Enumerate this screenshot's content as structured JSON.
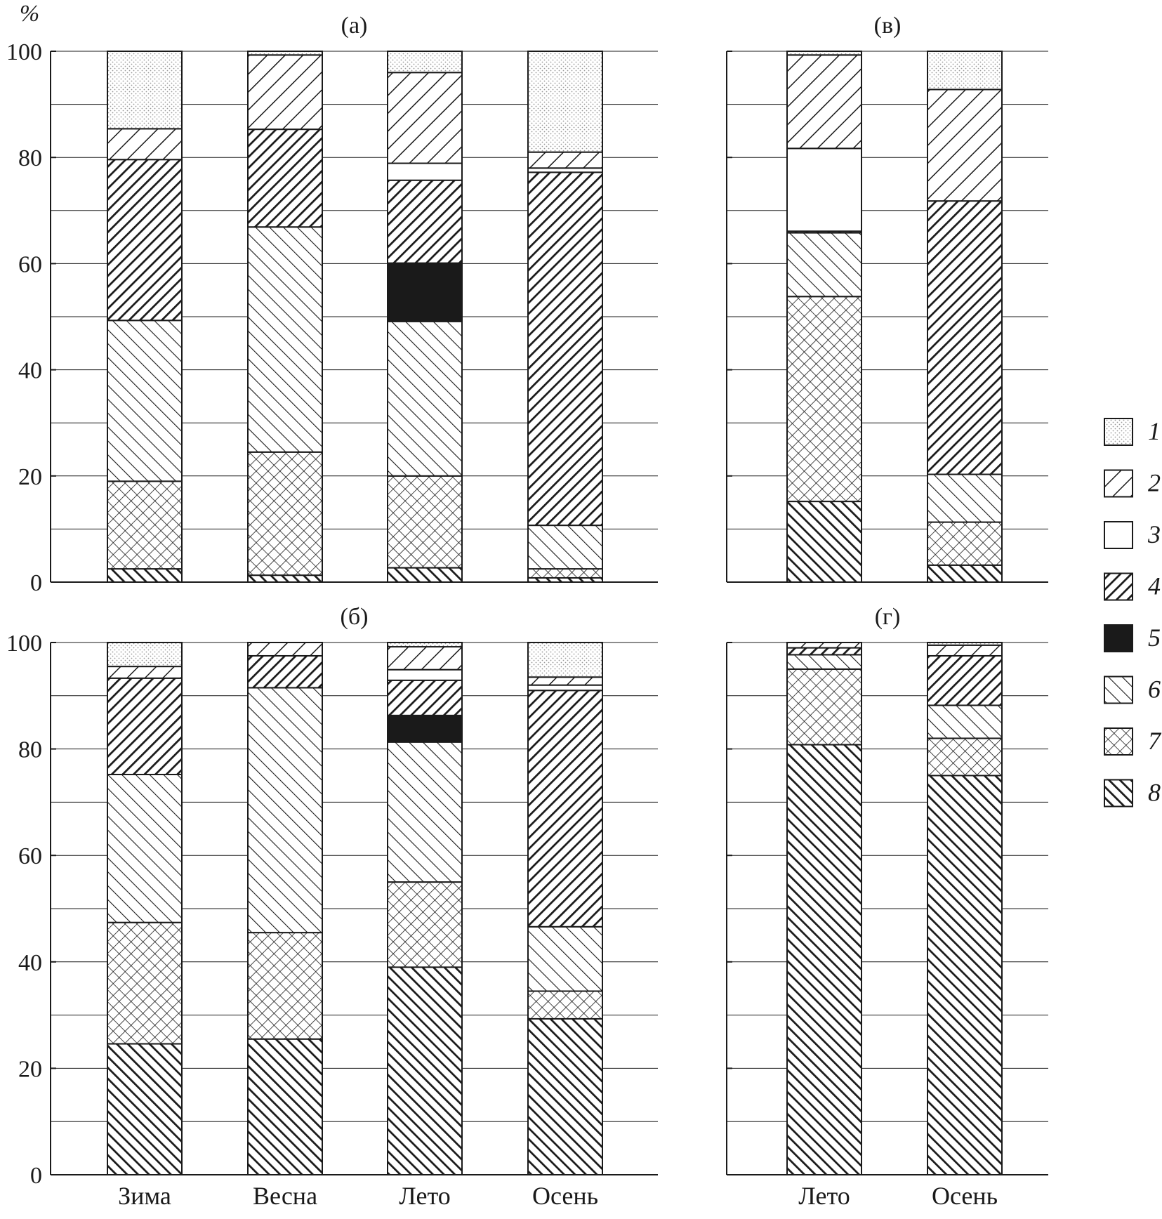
{
  "chart_data": [
    {
      "type": "bar",
      "stacked": true,
      "title": "(а)",
      "ylabel": "%",
      "ylim": [
        0,
        100
      ],
      "yticks": [
        0,
        20,
        40,
        60,
        80,
        100
      ],
      "grid": true,
      "categories": [
        "Зима",
        "Весна",
        "Лето",
        "Осень"
      ],
      "series": [
        {
          "name": "8",
          "values": [
            2.5,
            1.3,
            2.7,
            0.8
          ]
        },
        {
          "name": "7",
          "values": [
            16.5,
            23.2,
            17.3,
            1.7
          ]
        },
        {
          "name": "6",
          "values": [
            30.3,
            42.4,
            29.1,
            8.2
          ]
        },
        {
          "name": "5",
          "values": [
            0,
            0,
            11.0,
            0
          ]
        },
        {
          "name": "4",
          "values": [
            30.3,
            18.4,
            15.6,
            66.5
          ]
        },
        {
          "name": "3",
          "values": [
            0,
            0,
            3.2,
            0.8
          ]
        },
        {
          "name": "2",
          "values": [
            5.8,
            14.0,
            17.1,
            3.0
          ]
        },
        {
          "name": "1",
          "values": [
            14.6,
            0.7,
            4.0,
            19.0
          ]
        }
      ]
    },
    {
      "type": "bar",
      "stacked": true,
      "title": "(б)",
      "ylim": [
        0,
        100
      ],
      "yticks": [
        0,
        20,
        40,
        60,
        80,
        100
      ],
      "grid": true,
      "categories": [
        "Зима",
        "Весна",
        "Лето",
        "Осень"
      ],
      "series": [
        {
          "name": "8",
          "values": [
            24.6,
            25.5,
            39.0,
            29.3
          ]
        },
        {
          "name": "7",
          "values": [
            22.8,
            20.0,
            16.0,
            5.2
          ]
        },
        {
          "name": "6",
          "values": [
            27.8,
            46.0,
            26.3,
            12.1
          ]
        },
        {
          "name": "5",
          "values": [
            0,
            0,
            5.0,
            0
          ]
        },
        {
          "name": "4",
          "values": [
            18.1,
            6.0,
            6.6,
            44.4
          ]
        },
        {
          "name": "3",
          "values": [
            0,
            0,
            2.0,
            1.0
          ]
        },
        {
          "name": "2",
          "values": [
            2.2,
            2.5,
            4.3,
            1.5
          ]
        },
        {
          "name": "1",
          "values": [
            4.5,
            0,
            0.8,
            6.5
          ]
        }
      ]
    },
    {
      "type": "bar",
      "stacked": true,
      "title": "(в)",
      "ylim": [
        0,
        100
      ],
      "yticks": [
        0,
        20,
        40,
        60,
        80,
        100
      ],
      "grid": true,
      "categories": [
        "Лето",
        "Осень"
      ],
      "series": [
        {
          "name": "8",
          "values": [
            15.2,
            3.2
          ]
        },
        {
          "name": "7",
          "values": [
            38.6,
            8.1
          ]
        },
        {
          "name": "6",
          "values": [
            12.0,
            9.0
          ]
        },
        {
          "name": "5",
          "values": [
            0,
            0
          ]
        },
        {
          "name": "4",
          "values": [
            0.3,
            51.5
          ]
        },
        {
          "name": "3",
          "values": [
            15.6,
            0
          ]
        },
        {
          "name": "2",
          "values": [
            17.6,
            21.0
          ]
        },
        {
          "name": "1",
          "values": [
            0.7,
            7.2
          ]
        }
      ]
    },
    {
      "type": "bar",
      "stacked": true,
      "title": "(г)",
      "ylim": [
        0,
        100
      ],
      "yticks": [
        0,
        20,
        40,
        60,
        80,
        100
      ],
      "grid": true,
      "categories": [
        "Лето",
        "Осень"
      ],
      "series": [
        {
          "name": "8",
          "values": [
            80.8,
            75.0
          ]
        },
        {
          "name": "7",
          "values": [
            14.2,
            7.0
          ]
        },
        {
          "name": "6",
          "values": [
            2.7,
            6.2
          ]
        },
        {
          "name": "5",
          "values": [
            0,
            0
          ]
        },
        {
          "name": "4",
          "values": [
            1.3,
            9.3
          ]
        },
        {
          "name": "3",
          "values": [
            0,
            0
          ]
        },
        {
          "name": "2",
          "values": [
            1.0,
            2.0
          ]
        },
        {
          "name": "1",
          "values": [
            0,
            0.5
          ]
        }
      ]
    }
  ],
  "legend": {
    "placement": "right",
    "items": [
      {
        "label": "1",
        "pattern": "dots"
      },
      {
        "label": "2",
        "pattern": "hatch-backslash-wide"
      },
      {
        "label": "3",
        "pattern": "white"
      },
      {
        "label": "4",
        "pattern": "hatch-backslash-dense"
      },
      {
        "label": "5",
        "pattern": "solid-black"
      },
      {
        "label": "6",
        "pattern": "hatch-slash-wide"
      },
      {
        "label": "7",
        "pattern": "crosshatch"
      },
      {
        "label": "8",
        "pattern": "hatch-slash-dense"
      }
    ]
  },
  "colors": {
    "ink": "#1a1a1a",
    "solid": "#1a1a1a",
    "dots": "#9a9a9a",
    "background": "#ffffff"
  }
}
